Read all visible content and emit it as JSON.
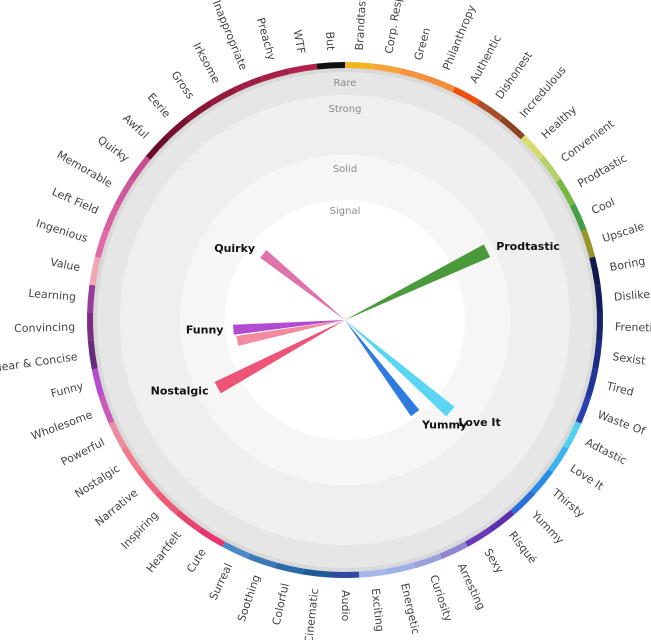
{
  "chart_data": {
    "type": "radial-spike",
    "intensity_rings": [
      "Signal",
      "Solid",
      "Strong",
      "Rare"
    ],
    "categories": [
      {
        "name": "Brandtastic",
        "color": "#f2b51c"
      },
      {
        "name": "Corp. Resp.",
        "color": "#f6a43a"
      },
      {
        "name": "Green",
        "color": "#f59240"
      },
      {
        "name": "Philanthropy",
        "color": "#f48c3c"
      },
      {
        "name": "Authentic",
        "color": "#f04e0c"
      },
      {
        "name": "Dishonest",
        "color": "#a84d2a"
      },
      {
        "name": "Incredulous",
        "color": "#8b4520"
      },
      {
        "name": "Healthy",
        "color": "#d6dd6a"
      },
      {
        "name": "Convenient",
        "color": "#b4d068"
      },
      {
        "name": "Prodtastic",
        "color": "#76b843"
      },
      {
        "name": "Cool",
        "color": "#44a046"
      },
      {
        "name": "Upscale",
        "color": "#99952a"
      },
      {
        "name": "Boring",
        "color": "#0e1a4a"
      },
      {
        "name": "Dislike",
        "color": "#111e5c"
      },
      {
        "name": "Frenetic",
        "color": "#16256e"
      },
      {
        "name": "Sexist",
        "color": "#1b2d82"
      },
      {
        "name": "Tired",
        "color": "#203699"
      },
      {
        "name": "Waste Of",
        "color": "#2b3fb0"
      },
      {
        "name": "Adtastic",
        "color": "#4fd0f2"
      },
      {
        "name": "Love It",
        "color": "#3ab3ee"
      },
      {
        "name": "Thirsty",
        "color": "#2a8be4"
      },
      {
        "name": "Yummy",
        "color": "#2a6fd8"
      },
      {
        "name": "Risqué",
        "color": "#5a2fb0"
      },
      {
        "name": "Sexy",
        "color": "#6a3ab8"
      },
      {
        "name": "Arresting",
        "color": "#8e86d0"
      },
      {
        "name": "Curiosity",
        "color": "#9aa0dc"
      },
      {
        "name": "Energetic",
        "color": "#9fb0e6"
      },
      {
        "name": "Exciting",
        "color": "#a6b6ec"
      },
      {
        "name": "Audio",
        "color": "#2e4aa0"
      },
      {
        "name": "Cinematic",
        "color": "#1e5a96"
      },
      {
        "name": "Colorful",
        "color": "#2a6aa8"
      },
      {
        "name": "Soothing",
        "color": "#3a7ab8"
      },
      {
        "name": "Surreal",
        "color": "#4a8ac8"
      },
      {
        "name": "Cute",
        "color": "#e8346e"
      },
      {
        "name": "Heartfelt",
        "color": "#e8446c"
      },
      {
        "name": "Inspiring",
        "color": "#ef5b77"
      },
      {
        "name": "Narrative",
        "color": "#f06a80"
      },
      {
        "name": "Nostalgic",
        "color": "#f07a8a"
      },
      {
        "name": "Powerful",
        "color": "#f08ca0"
      },
      {
        "name": "Wholesome",
        "color": "#c85ab8"
      },
      {
        "name": "Funny",
        "color": "#b84cd0"
      },
      {
        "name": "Clear & Concise",
        "color": "#6a2a7a"
      },
      {
        "name": "Convincing",
        "color": "#7e2c86"
      },
      {
        "name": "Learning",
        "color": "#9a3a9a"
      },
      {
        "name": "Value",
        "color": "#f2a6b6"
      },
      {
        "name": "Ingenious",
        "color": "#e06aa8"
      },
      {
        "name": "Left Field",
        "color": "#d8609e"
      },
      {
        "name": "Memorable",
        "color": "#d0589a"
      },
      {
        "name": "Quirky",
        "color": "#c84c94"
      },
      {
        "name": "Awful",
        "color": "#6a0c2a"
      },
      {
        "name": "Eerie",
        "color": "#7a1030"
      },
      {
        "name": "Gross",
        "color": "#8a1436"
      },
      {
        "name": "Irksome",
        "color": "#961a3c"
      },
      {
        "name": "Inappropriate",
        "color": "#a01e42"
      },
      {
        "name": "Preachy",
        "color": "#a82046"
      },
      {
        "name": "WTF",
        "color": "#b2224a"
      },
      {
        "name": "But",
        "color": "#111111"
      }
    ],
    "spikes": [
      {
        "label": "Prodtastic",
        "show_label": true,
        "angle_deg": 64,
        "intensity": 0.6,
        "color": "#4a9a3c"
      },
      {
        "label": "Love It",
        "show_label": true,
        "angle_deg": 131,
        "intensity": 0.52,
        "color": "#5ad6f4"
      },
      {
        "label": "Yummy",
        "show_label": true,
        "angle_deg": 143,
        "intensity": 0.42,
        "color": "#2e7be0"
      },
      {
        "label": "Nostalgic",
        "show_label": true,
        "angle_deg": 242,
        "intensity": 0.54,
        "color": "#ee5476"
      },
      {
        "label": "",
        "show_label": false,
        "angle_deg": 259,
        "intensity": 0.39,
        "color": "#f28aa0"
      },
      {
        "label": "Funny",
        "show_label": true,
        "angle_deg": 265,
        "intensity": 0.4,
        "color": "#b24ad2"
      },
      {
        "label": "Quirky",
        "show_label": true,
        "angle_deg": 309,
        "intensity": 0.37,
        "color": "#de72aa"
      }
    ]
  }
}
